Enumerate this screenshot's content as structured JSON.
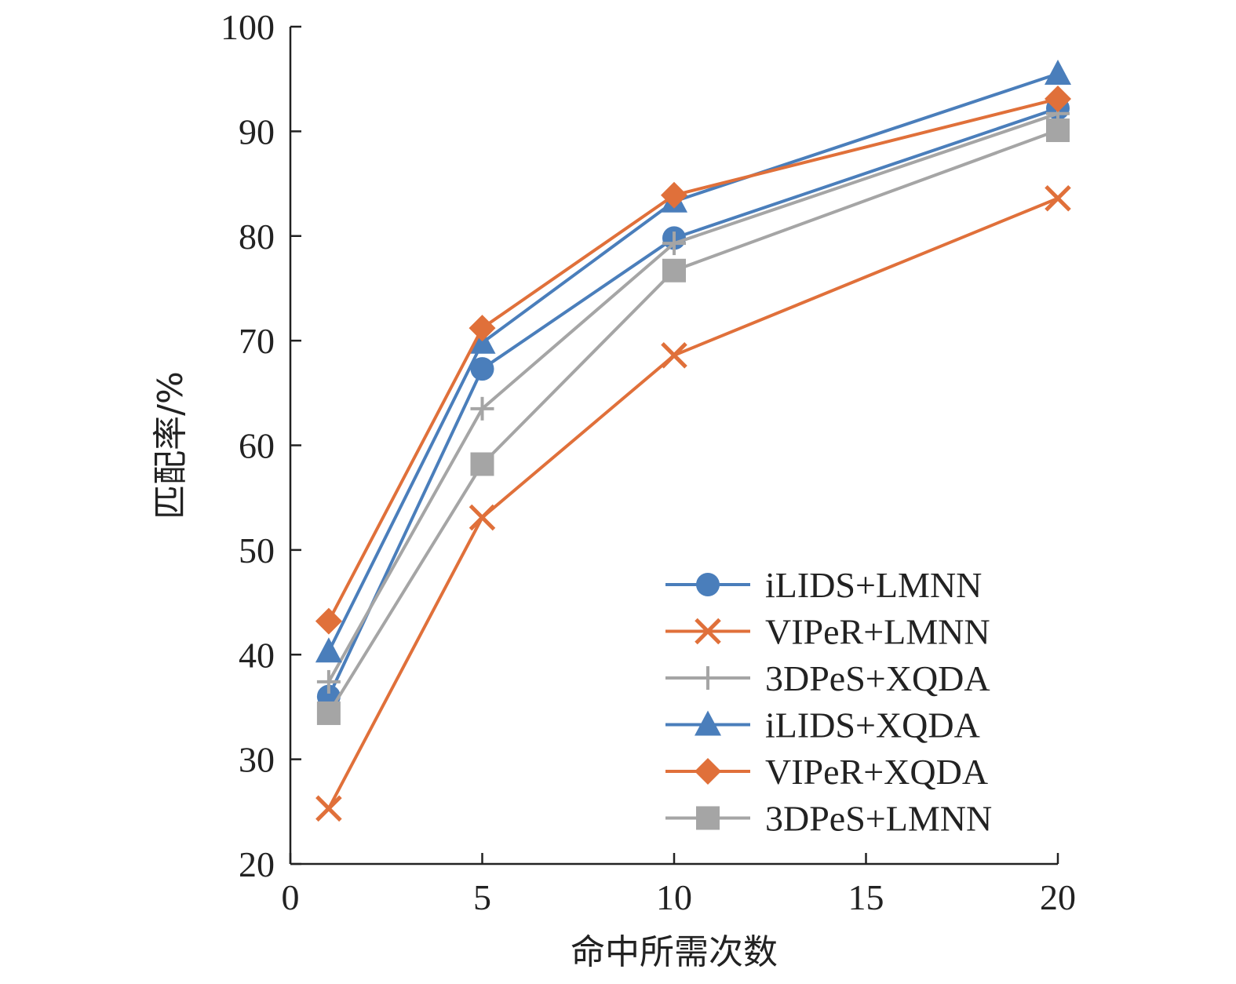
{
  "chart_data": {
    "type": "line",
    "title": "",
    "xlabel": "命中所需次数",
    "ylabel": "匹配率/%",
    "xlim": [
      0,
      20
    ],
    "ylim": [
      20,
      100
    ],
    "xticks": [
      0,
      5,
      10,
      15,
      20
    ],
    "yticks": [
      20,
      30,
      40,
      50,
      60,
      70,
      80,
      90,
      100
    ],
    "grid": false,
    "legend_position": "bottom-right",
    "x": [
      1,
      5,
      10,
      20
    ],
    "series": [
      {
        "name": "iLIDS+LMNN",
        "color": "#4a7ebb",
        "marker": "circle",
        "values": [
          36.0,
          67.3,
          79.8,
          92.2
        ]
      },
      {
        "name": "VIPeR+LMNN",
        "color": "#e0703a",
        "marker": "x",
        "values": [
          25.3,
          53.1,
          68.6,
          83.6
        ]
      },
      {
        "name": "3DPeS+XQDA",
        "color": "#a5a5a5",
        "marker": "plus",
        "values": [
          37.4,
          63.5,
          79.3,
          91.7
        ]
      },
      {
        "name": "iLIDS+XQDA",
        "color": "#4a7ebb",
        "marker": "triangle",
        "values": [
          40.3,
          69.8,
          83.3,
          95.5
        ]
      },
      {
        "name": "VIPeR+XQDA",
        "color": "#e0703a",
        "marker": "diamond",
        "values": [
          43.2,
          71.2,
          83.9,
          93.1
        ]
      },
      {
        "name": "3DPeS+LMNN",
        "color": "#a5a5a5",
        "marker": "square",
        "values": [
          34.4,
          58.2,
          76.7,
          90.1
        ]
      }
    ]
  }
}
